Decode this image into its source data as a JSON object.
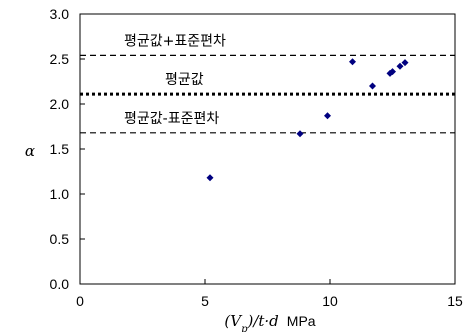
{
  "chart_data": {
    "type": "scatter",
    "xlabel": "(V_p)/t·d  MPa",
    "xlabel_parts": {
      "expr": "(V",
      "sub": "p",
      "expr2": ")/t·d",
      "unit": "MPa"
    },
    "ylabel": "α",
    "xlim": [
      0,
      15
    ],
    "ylim": [
      0.0,
      3.0
    ],
    "x_ticks": [
      "0",
      "5",
      "10",
      "15"
    ],
    "y_ticks": [
      "0.0",
      "0.5",
      "1.0",
      "1.5",
      "2.0",
      "2.5",
      "3.0"
    ],
    "grid": false,
    "marker_color": "#000080",
    "points": [
      {
        "x": 5.2,
        "y": 1.18
      },
      {
        "x": 8.8,
        "y": 1.67
      },
      {
        "x": 9.9,
        "y": 1.87
      },
      {
        "x": 10.9,
        "y": 2.47
      },
      {
        "x": 11.7,
        "y": 2.2
      },
      {
        "x": 12.4,
        "y": 2.34
      },
      {
        "x": 12.5,
        "y": 2.36
      },
      {
        "x": 12.8,
        "y": 2.42
      },
      {
        "x": 13.0,
        "y": 2.46
      }
    ],
    "reference_lines": [
      {
        "label": "평균값+표준편차",
        "y": 2.54,
        "style": "dashed"
      },
      {
        "label": "평균값",
        "y": 2.11,
        "style": "dotted"
      },
      {
        "label": "평균값-표준편차",
        "y": 1.68,
        "style": "dashed"
      }
    ]
  }
}
